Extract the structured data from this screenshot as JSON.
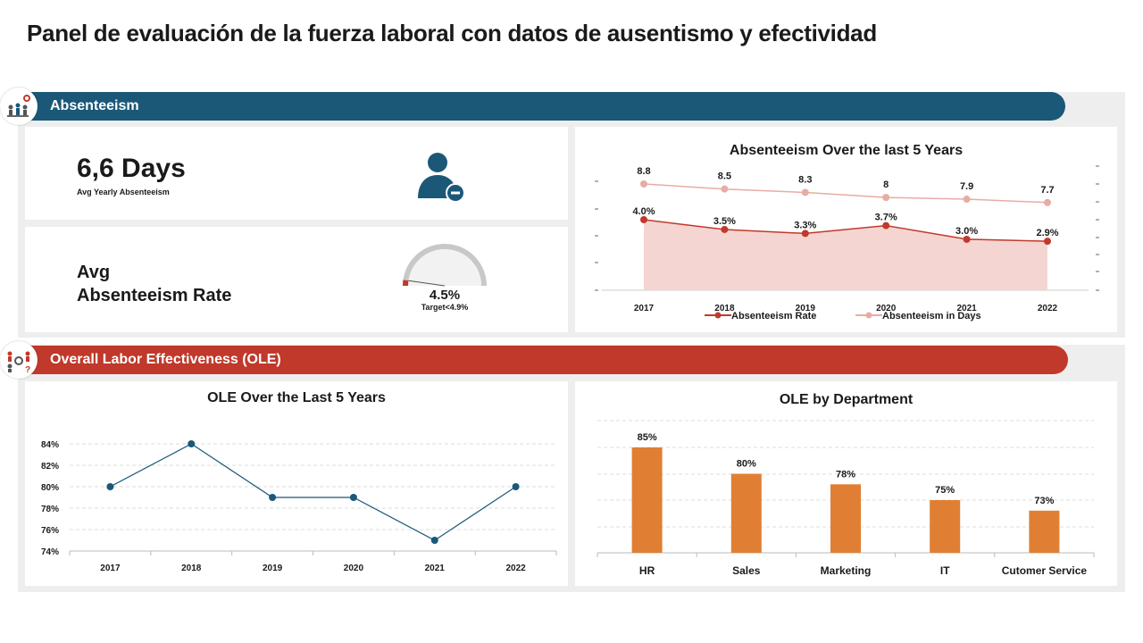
{
  "page_title": "Panel de evaluación de la fuerza laboral con datos de ausentismo y efectividad",
  "sections": {
    "absenteeism": {
      "label": "Absenteeism",
      "icon": "people-gear-icon",
      "color": "#1b5878"
    },
    "ole": {
      "label": "Overall Labor Effectiveness (OLE)",
      "icon": "people-gear-question-icon",
      "color": "#c0392b"
    }
  },
  "kpi_days": {
    "value": "6,6 Days",
    "caption": "Avg Yearly Absenteeism",
    "icon": "user-minus-icon"
  },
  "kpi_rate": {
    "label_line1": "Avg",
    "label_line2": "Absenteeism  Rate",
    "value": "4.5%",
    "target": "Target<4.9%",
    "gauge_fraction": 0.045
  },
  "chart_data": [
    {
      "type": "line",
      "title": "Absenteeism Over the last 5 Years",
      "x": [
        "2017",
        "2018",
        "2019",
        "2020",
        "2021",
        "2022"
      ],
      "series": [
        {
          "name": "Absenteeism Rate",
          "values": [
            4.0,
            3.5,
            3.3,
            3.7,
            3.0,
            2.9
          ],
          "labels": [
            "4.0%",
            "3.5%",
            "3.3%",
            "3.7%",
            "3.0%",
            "2.9%"
          ],
          "color": "#c0392b",
          "area": true,
          "area_color": "#f5d5d1"
        },
        {
          "name": "Absenteeism in Days",
          "values": [
            8.8,
            8.5,
            8.3,
            8,
            7.9,
            7.7
          ],
          "labels": [
            "8.8",
            "8.5",
            "8.3",
            "8",
            "7.9",
            "7.7"
          ],
          "color": "#e6ada3"
        }
      ],
      "legend": "bottom"
    },
    {
      "type": "line",
      "title": "OLE Over the Last 5 Years",
      "x": [
        "2017",
        "2018",
        "2019",
        "2020",
        "2021",
        "2022"
      ],
      "series": [
        {
          "values": [
            80,
            84,
            79,
            79,
            75,
            80
          ],
          "color": "#1b5878"
        }
      ],
      "y_ticks": [
        "84%",
        "82%",
        "80%",
        "78%",
        "76%",
        "74%"
      ],
      "ylim": [
        74,
        84
      ],
      "grid": true
    },
    {
      "type": "bar",
      "title": "OLE by Department",
      "categories": [
        "HR",
        "Sales",
        "Marketing",
        "IT",
        "Cutomer Service"
      ],
      "values": [
        85,
        80,
        78,
        75,
        73
      ],
      "labels": [
        "85%",
        "80%",
        "78%",
        "75%",
        "73%"
      ],
      "color": "#e07f33",
      "grid": true
    }
  ]
}
